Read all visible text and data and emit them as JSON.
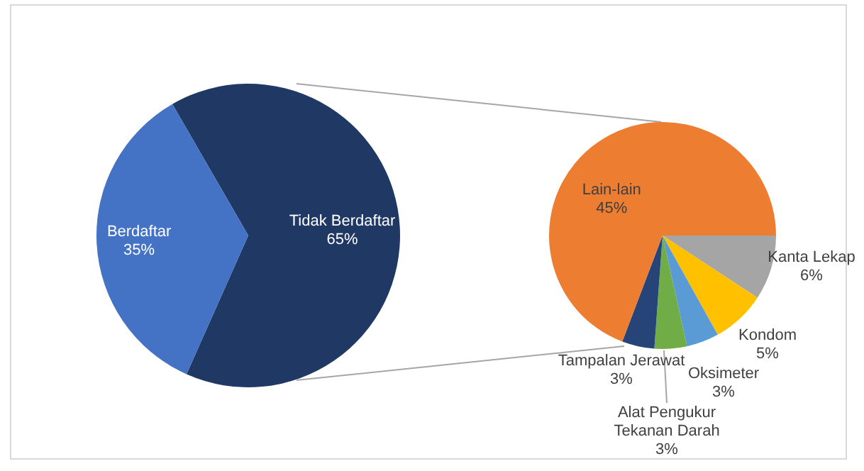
{
  "chart_data": [
    {
      "type": "pie",
      "categories": [
        "Tidak Berdaftar",
        "Berdaftar"
      ],
      "values": [
        65,
        35
      ],
      "colors": [
        "#203864",
        "#4472c4"
      ],
      "value_labels": [
        "65%",
        "35%"
      ],
      "legend": false
    },
    {
      "type": "pie",
      "categories": [
        "Kanta Lekap",
        "Kondom",
        "Oksimeter",
        "Alat Pengukur Tekanan Darah",
        "Tampalan Jerawat",
        "Lain-lain"
      ],
      "values": [
        6,
        5,
        3,
        3,
        3,
        45
      ],
      "colors": [
        "#a5a5a5",
        "#ffc000",
        "#5b9bd5",
        "#70ad47",
        "#264478",
        "#ed7d31"
      ],
      "value_labels": [
        "6%",
        "5%",
        "3%",
        "3%",
        "3%",
        "45%"
      ],
      "legend": false
    }
  ]
}
